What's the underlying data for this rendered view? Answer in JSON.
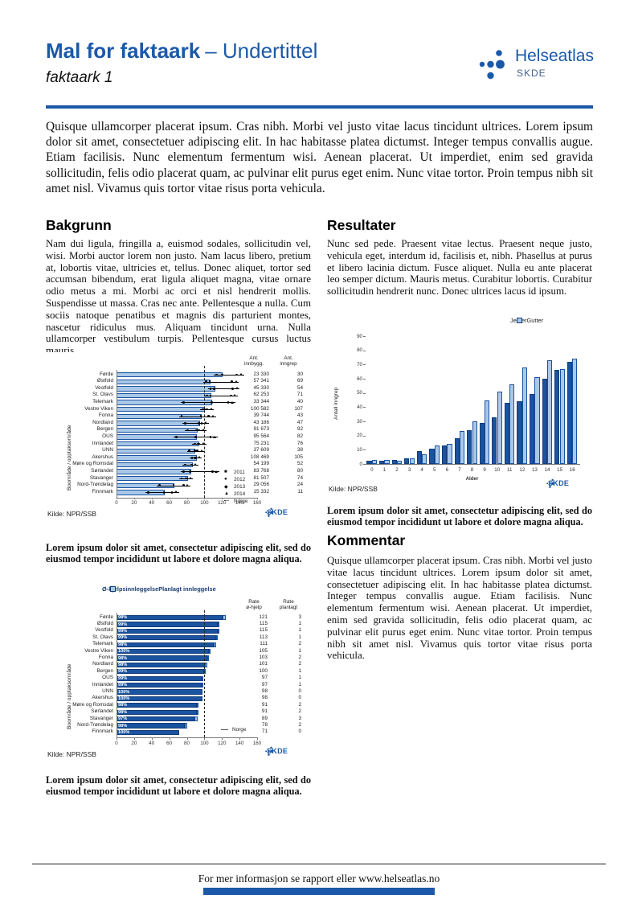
{
  "header": {
    "title_bold": "Mal for faktaark",
    "title_rest": "– Undertittel",
    "subtitle": "faktaark 1",
    "logo_name": "Helseatlas",
    "logo_sub": "SKDE"
  },
  "intro": "Quisque ullamcorper placerat ipsum. Cras nibh. Morbi vel justo vitae lacus tincidunt ultrices. Lorem ipsum dolor sit amet, consectetuer adipiscing elit. In hac habitasse platea dictumst. Integer tempus convallis augue. Etiam facilisis. Nunc elementum fermentum wisi. Aenean placerat. Ut imperdiet, enim sed gravida sollicitudin, felis odio placerat quam, ac pulvinar elit purus eget enim. Nunc vitae tortor. Proin tempus nibh sit amet nisl. Vivamus quis tortor vitae risus porta vehicula.",
  "sections": {
    "bakgrunn": {
      "heading": "Bakgrunn",
      "body": "Nam dui ligula, fringilla a, euismod sodales, sollicitudin vel, wisi. Morbi auctor lorem non justo. Nam lacus libero, pretium at, lobortis vitae, ultricies et, tellus. Donec aliquet, tortor sed accumsan bibendum, erat ligula aliquet magna, vitae ornare odio metus a mi. Morbi ac orci et nisl hendrerit mollis. Suspendisse ut massa. Cras nec ante. Pellentesque a nulla. Cum sociis natoque penatibus et magnis dis parturient montes, nascetur ridiculus mus. Aliquam tincidunt urna. Nulla ullamcorper vestibulum turpis. Pellentesque cursus luctus mauris."
    },
    "resultater": {
      "heading": "Resultater",
      "body": "Nunc sed pede. Praesent vitae lectus. Praesent neque justo, vehicula eget, interdum id, facilisis et, nibh. Phasellus at purus et libero lacinia dictum. Fusce aliquet. Nulla eu ante placerat leo semper dictum. Mauris metus. Curabitur lobortis. Curabitur sollicitudin hendrerit nunc. Donec ultrices lacus id ipsum."
    },
    "kommentar": {
      "heading": "Kommentar",
      "body": "Quisque ullamcorper placerat ipsum. Cras nibh. Morbi vel justo vitae lacus tincidunt ultrices. Lorem ipsum dolor sit amet, consectetuer adipiscing elit. In hac habitasse platea dictumst. Integer tempus convallis augue. Etiam facilisis. Nunc elementum fermentum wisi. Aenean placerat. Ut imperdiet, enim sed gravida sollicitudin, felis odio placerat quam, ac pulvinar elit purus eget enim. Nunc vitae tortor. Proin tempus nibh sit amet nisl. Vivamus quis tortor vitae risus porta vehicula."
    }
  },
  "captions": {
    "chart1": "Lorem ipsum dolor sit amet, consectetur adipiscing elit, sed do eiusmod tempor incididunt ut labore et dolore magna aliqua.",
    "chart2": "Lorem ipsum dolor sit amet, consectetur adipiscing elit, sed do eiusmod tempor incididunt ut labore et dolore magna aliqua.",
    "chart3": "Lorem ipsum dolor sit amet, consectetur adipiscing elit, sed do eiusmod tempor incididunt ut labore et dolore magna aliqua."
  },
  "footer": {
    "text": "For mer informasjon se rapport eller www.helseatlas.no"
  },
  "colors": {
    "brand_blue": "#1b59a8",
    "bar_dark": "#1a53a0",
    "bar_light": "#a9c8e8"
  },
  "chart_data": [
    {
      "id": "regions-rate-years",
      "type": "bar",
      "orientation": "horizontal",
      "ylabel": "Boområde / opptaksområde",
      "xlabel": "",
      "xlim": [
        0,
        160
      ],
      "xticks": [
        0,
        20,
        40,
        60,
        80,
        100,
        120,
        140,
        160
      ],
      "grid": false,
      "categories": [
        "Førde",
        "Østfold",
        "Vestfold",
        "St. Olavs",
        "Telemark",
        "Vestre Viken",
        "Fonna",
        "Nordland",
        "Bergen",
        "OUS",
        "Innlandet",
        "UNN",
        "Akershus",
        "Møre og Romsdal",
        "Sørlandet",
        "Stavanger",
        "Nord-Trøndelag",
        "Finnmark"
      ],
      "values": [
        121,
        107,
        112,
        108,
        109,
        101,
        97,
        95,
        92,
        91,
        94,
        90,
        91,
        87,
        85,
        81,
        66,
        55
      ],
      "legend": [
        "2011",
        "2012",
        "2013",
        "2014",
        "Norge"
      ],
      "legend_markers": [
        "■",
        "●",
        "◆",
        "▲",
        "—"
      ],
      "reference_line": {
        "label": "Norge",
        "value": 100
      },
      "columns": [
        {
          "header": [
            "Ant.",
            "innbygg."
          ],
          "values": [
            "23 330",
            "57 341",
            "45 330",
            "62 253",
            "33 344",
            "100 582",
            "39 744",
            "43 186",
            "91 673",
            "95 564",
            "75 231",
            "37 609",
            "108 469",
            "54 199",
            "83 768",
            "81 507",
            "29 056",
            "15 332"
          ]
        },
        {
          "header": [
            "Ant.",
            "inngrep"
          ],
          "values": [
            30,
            69,
            54,
            71,
            40,
            107,
            43,
            47,
            92,
            82,
            76,
            38,
            105,
            52,
            80,
            74,
            24,
            11
          ]
        }
      ],
      "source": "Kilde: NPR/SSB",
      "logo": "SKDE"
    },
    {
      "id": "age-sex",
      "type": "bar",
      "orientation": "vertical",
      "xlabel": "Alder",
      "ylabel": "Antall inngrep",
      "ylim": [
        0,
        90
      ],
      "yticks": [
        0,
        10,
        20,
        30,
        40,
        50,
        60,
        70,
        80,
        90
      ],
      "grid": false,
      "legend_position": "top-right",
      "categories": [
        "0",
        "1",
        "2",
        "3",
        "4",
        "5",
        "6",
        "7",
        "8",
        "9",
        "10",
        "11",
        "12",
        "13",
        "14",
        "15",
        "16"
      ],
      "series": [
        {
          "name": "Jenter",
          "color": "#1a53a0",
          "values": [
            2,
            2,
            3,
            4,
            9,
            11,
            13,
            18,
            24,
            29,
            33,
            43,
            44,
            49,
            60,
            66,
            72
          ]
        },
        {
          "name": "Gutter",
          "color": "#a9c8e8",
          "values": [
            3,
            3,
            2,
            4,
            7,
            13,
            14,
            23,
            30,
            45,
            51,
            56,
            68,
            61,
            73,
            67,
            74
          ]
        }
      ],
      "source": "Kilde: NPR/SSB",
      "logo": "SKDE"
    },
    {
      "id": "admission-type",
      "type": "bar",
      "orientation": "horizontal",
      "stacked": true,
      "ylabel": "Boområde / opptaksområde",
      "xlim": [
        0,
        160
      ],
      "xticks": [
        0,
        20,
        40,
        60,
        80,
        100,
        120,
        140,
        160
      ],
      "grid": false,
      "categories": [
        "Førde",
        "Østfold",
        "Vestfold",
        "St. Olavs",
        "Telemark",
        "Vestre Viken",
        "Fonna",
        "Nordland",
        "Bergen",
        "OUS",
        "Innlandet",
        "UNN",
        "Akershus",
        "Møre og Romsdal",
        "Sørlandet",
        "Stavanger",
        "Nord-Trøndelag",
        "Finnmark"
      ],
      "series": [
        {
          "name": "Ø-hjelpsinnleggelse",
          "color": "#1a53a0",
          "values": [
            121,
            115,
            115,
            113,
            111,
            105,
            103,
            101,
            100,
            97,
            97,
            98,
            98,
            91,
            91,
            89,
            78,
            71
          ]
        },
        {
          "name": "Planlagt innleggelse",
          "color": "#a9c8e8",
          "values": [
            3,
            1,
            1,
            1,
            2,
            1,
            2,
            2,
            1,
            1,
            1,
            0,
            0,
            2,
            2,
            3,
            2,
            0
          ]
        }
      ],
      "bar_labels": [
        "98%",
        "99%",
        "99%",
        "99%",
        "98%",
        "100%",
        "98%",
        "98%",
        "99%",
        "99%",
        "99%",
        "100%",
        "100%",
        "98%",
        "98%",
        "97%",
        "98%",
        "100%"
      ],
      "reference_line": {
        "label": "Norge",
        "value": 100
      },
      "columns": [
        {
          "header": [
            "Rate",
            "ø-hjelp"
          ],
          "values": [
            121,
            115,
            115,
            113,
            111,
            105,
            103,
            101,
            100,
            97,
            97,
            98,
            98,
            91,
            91,
            89,
            78,
            71
          ]
        },
        {
          "header": [
            "Rate",
            "planlagt"
          ],
          "values": [
            3,
            1,
            1,
            1,
            2,
            1,
            2,
            2,
            1,
            1,
            1,
            0,
            0,
            2,
            2,
            3,
            2,
            0
          ]
        }
      ],
      "source": "Kilde: NPR/SSB",
      "logo": "SKDE"
    }
  ]
}
